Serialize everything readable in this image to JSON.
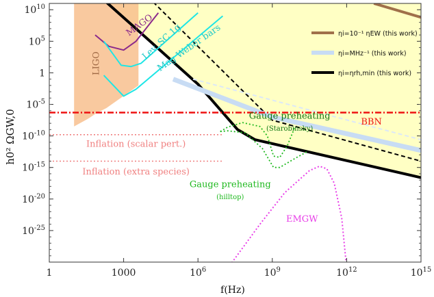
{
  "chart_data": {
    "type": "line",
    "xscale": "log10",
    "yscale": "log10",
    "xlim_exp": [
      0,
      15
    ],
    "ylim_exp": [
      -30,
      11
    ],
    "xlabel": "f(Hz)",
    "ylabel": "h0² ΩGW,0",
    "xticks": [
      {
        "value": 1,
        "label": "1"
      },
      {
        "value": 1000,
        "label": "1000"
      },
      {
        "value": 1000000,
        "label": "10^6"
      },
      {
        "value": 1000000000,
        "label": "10^9"
      },
      {
        "value": 1000000000000,
        "label": "10^12"
      },
      {
        "value": 1000000000000000,
        "label": "10^15"
      }
    ],
    "yticks": [
      {
        "value": 10000000000.0,
        "label": "10^10"
      },
      {
        "value": 100000.0,
        "label": "10^5"
      },
      {
        "value": 1,
        "label": "1"
      },
      {
        "value": 1e-05,
        "label": "10^-5"
      },
      {
        "value": 1e-10,
        "label": "10^-10"
      },
      {
        "value": 1e-15,
        "label": "10^-15"
      },
      {
        "value": 1e-20,
        "label": "10^-20"
      },
      {
        "value": 1e-25,
        "label": "10^-25"
      }
    ],
    "legend_position": "top-right",
    "legend": [
      {
        "label": "ηi=10⁻¹ ηEW (this work)",
        "color": "#a0704a"
      },
      {
        "label": "ηi=MHz⁻¹ (this work)",
        "color": "#c8dcf4"
      },
      {
        "label": "ηi=ηrh,min (this work)",
        "color": "#000000"
      }
    ],
    "series": [
      {
        "name": "eta_rh_min",
        "style": "solid",
        "color": "#000000",
        "width": 4,
        "points_log": [
          [
            2.3,
            11.2
          ],
          [
            3.5,
            7.0
          ],
          [
            6.0,
            -1.8
          ],
          [
            7.6,
            -9.0
          ],
          [
            8.3,
            -10.6
          ],
          [
            15,
            -16.6
          ]
        ]
      },
      {
        "name": "black_dashed",
        "style": "dashed",
        "color": "#000000",
        "width": 2,
        "points_log": [
          [
            4.2,
            11.2
          ],
          [
            9.0,
            -7.5
          ],
          [
            15,
            -14.0
          ]
        ]
      },
      {
        "name": "eta_MHz",
        "style": "solid",
        "color": "#c8dcf4",
        "width": 7,
        "points_log": [
          [
            5.0,
            -1.0
          ],
          [
            9.0,
            -7.0
          ],
          [
            15,
            -12.3
          ]
        ]
      },
      {
        "name": "eta_MHz_faint",
        "style": "dashed",
        "color": "#dce8f8",
        "width": 2,
        "points_log": [
          [
            5.8,
            -1.0
          ],
          [
            15,
            -10.6
          ]
        ]
      },
      {
        "name": "eta_EW",
        "style": "solid",
        "color": "#a0704a",
        "width": 4,
        "points_log": [
          [
            13.1,
            11.0
          ],
          [
            15,
            8.8
          ]
        ]
      },
      {
        "name": "BBN",
        "style": "dashdot",
        "color": "#ee1111",
        "width": 2.5,
        "points_log": [
          [
            0,
            -6.3
          ],
          [
            15,
            -6.3
          ]
        ]
      },
      {
        "name": "Inflation (scalar pert.)",
        "style": "dotted",
        "color": "#f08080",
        "width": 1.6,
        "points_log": [
          [
            0,
            -9.8
          ],
          [
            7.0,
            -9.8
          ]
        ]
      },
      {
        "name": "Inflation (extra species)",
        "style": "dotted",
        "color": "#f08080",
        "width": 1.6,
        "points_log": [
          [
            0,
            -14.0
          ],
          [
            7.0,
            -14.0
          ]
        ]
      },
      {
        "name": "MAGO",
        "style": "solid",
        "color": "#8b2a8b",
        "width": 2,
        "points_log": [
          [
            1.85,
            6.0
          ],
          [
            2.4,
            4.2
          ],
          [
            3.0,
            3.6
          ],
          [
            3.5,
            5.0
          ],
          [
            4.4,
            9.5
          ]
        ]
      },
      {
        "name": "Lev. SC 1g",
        "style": "solid",
        "color": "#1ee6e6",
        "width": 2,
        "points_log": [
          [
            2.2,
            5.0
          ],
          [
            2.9,
            1.2
          ],
          [
            3.3,
            1.0
          ],
          [
            3.7,
            1.5
          ],
          [
            6.0,
            9.5
          ]
        ]
      },
      {
        "name": "Mag Weber bars",
        "style": "solid",
        "color": "#1ee6e6",
        "width": 2,
        "points_log": [
          [
            2.2,
            -0.4
          ],
          [
            3.0,
            -3.7
          ],
          [
            3.5,
            -2.6
          ],
          [
            7.0,
            9.0
          ]
        ]
      },
      {
        "name": "Gauge preheating (Starobinsky)",
        "style": "dotted",
        "color": "#1db81d",
        "width": 1.8,
        "points_log": [
          [
            6.9,
            -9.3
          ],
          [
            7.2,
            -8.6
          ],
          [
            7.8,
            -7.9
          ],
          [
            8.5,
            -8.5
          ],
          [
            8.8,
            -10.0
          ],
          [
            9.05,
            -13.2
          ],
          [
            9.3,
            -13.4
          ],
          [
            9.6,
            -11.6
          ],
          [
            9.9,
            -8.7
          ]
        ]
      },
      {
        "name": "Gauge preheating (hilltop)",
        "style": "dotted",
        "color": "#1db81d",
        "width": 1.8,
        "points_log": [
          [
            6.9,
            -9.3
          ],
          [
            7.2,
            -9.2
          ],
          [
            7.9,
            -9.5
          ],
          [
            8.6,
            -12.0
          ],
          [
            9.05,
            -15.0
          ],
          [
            9.3,
            -15.0
          ],
          [
            9.9,
            -13.6
          ],
          [
            10.4,
            -12.5
          ]
        ]
      },
      {
        "name": "EMGW",
        "style": "dotted",
        "color": "#e83ee8",
        "width": 2,
        "points_log": [
          [
            7.2,
            -31.0
          ],
          [
            8.5,
            -24.0
          ],
          [
            9.5,
            -19.0
          ],
          [
            10.5,
            -15.5
          ],
          [
            10.9,
            -14.8
          ],
          [
            11.2,
            -15.2
          ],
          [
            11.5,
            -17.5
          ],
          [
            11.8,
            -23.0
          ],
          [
            12.0,
            -31.0
          ]
        ]
      }
    ],
    "regions": [
      {
        "name": "LIGO",
        "color": "#f8c08e",
        "opacity": 0.85,
        "polygon_log": [
          [
            1.0,
            11.2
          ],
          [
            3.6,
            11.2
          ],
          [
            3.6,
            -2.0
          ],
          [
            2.3,
            -5.6
          ],
          [
            1.9,
            -6.4
          ],
          [
            1.6,
            -7.2
          ],
          [
            1.0,
            -8.5
          ]
        ]
      },
      {
        "name": "excluded_upper",
        "color": "#ffffbe",
        "opacity": 0.9,
        "polygon_log": [
          [
            1.55,
            11.2
          ],
          [
            15,
            11.2
          ],
          [
            15,
            -16.6
          ],
          [
            8.3,
            -10.6
          ],
          [
            7.6,
            -9.0
          ],
          [
            6.0,
            -1.8
          ],
          [
            3.5,
            7.0
          ],
          [
            2.3,
            11.2
          ]
        ]
      }
    ],
    "annotations": [
      {
        "text": "LIGO",
        "color": "#a06a45",
        "at_log": [
          2.0,
          1.5
        ],
        "rotate": -90
      },
      {
        "text": "MAGO",
        "color": "#8b2a8b",
        "at_log": [
          3.7,
          7.2
        ],
        "rotate": -36
      },
      {
        "text": "Lev. SC 1g",
        "color": "#1ec8c8",
        "at_log": [
          4.6,
          4.6
        ],
        "rotate": -42
      },
      {
        "text": "Mag Weber bars",
        "color": "#1ec8c8",
        "at_log": [
          5.7,
          3.6
        ],
        "rotate": -35
      },
      {
        "text": "BBN",
        "color": "#ee1111",
        "at_log": [
          13.0,
          -8.2
        ],
        "rotate": 0
      },
      {
        "text": "Gauge preheating",
        "color": "#117711",
        "at_log": [
          9.7,
          -7.3
        ],
        "rotate": 0
      },
      {
        "text": "(Starobinsky)",
        "color": "#117711",
        "at_log": [
          9.7,
          -9.2
        ],
        "rotate": 0,
        "small": true
      },
      {
        "text": "Inflation (scalar pert.)",
        "color": "#f08080",
        "at_log": [
          3.5,
          -11.7
        ],
        "rotate": 0
      },
      {
        "text": "Inflation (extra species)",
        "color": "#f08080",
        "at_log": [
          3.5,
          -16.1
        ],
        "rotate": 0
      },
      {
        "text": "Gauge preheating",
        "color": "#1db81d",
        "at_log": [
          7.3,
          -18.1
        ],
        "rotate": 0
      },
      {
        "text": "(hilltop)",
        "color": "#1db81d",
        "at_log": [
          7.3,
          -20.0
        ],
        "rotate": 0,
        "small": true
      },
      {
        "text": "EMGW",
        "color": "#e83ee8",
        "at_log": [
          10.2,
          -23.6
        ],
        "rotate": 0
      }
    ]
  }
}
